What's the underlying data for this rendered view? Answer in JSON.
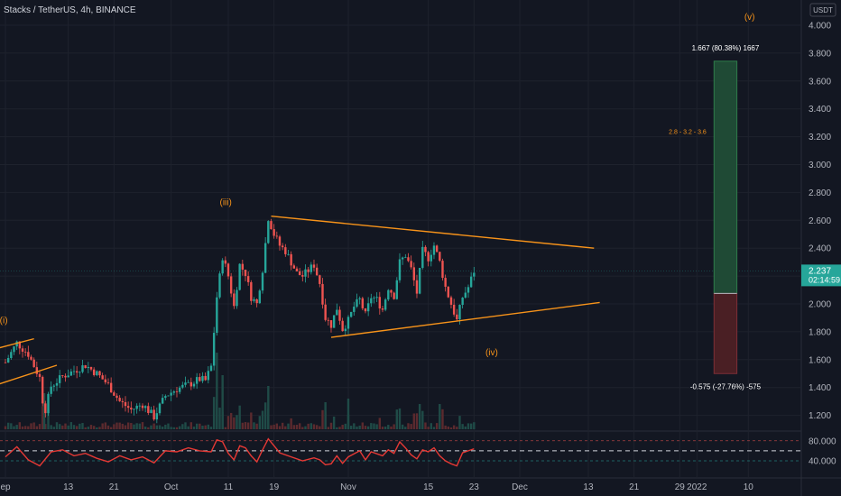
{
  "header": {
    "title": "Stacks / TetherUS, 4h, BINANCE",
    "currency_badge": "USDT"
  },
  "chart_data": {
    "type": "candlestick",
    "title": "Stacks / TetherUS, 4h, BINANCE",
    "ylim": [
      1.1,
      4.1
    ],
    "y_ticks": [
      1.2,
      1.4,
      1.6,
      1.8,
      2.0,
      2.2,
      2.4,
      2.6,
      2.8,
      3.0,
      3.2,
      3.4,
      3.6,
      3.8,
      4.0
    ],
    "y_tick_labels": [
      "1.200",
      "1.400",
      "1.600",
      "1.800",
      "2.000",
      "2.200",
      "2.400",
      "2.600",
      "2.800",
      "3.000",
      "3.200",
      "3.400",
      "3.600",
      "3.800",
      "4.000"
    ],
    "x_tick_labels": [
      {
        "label": "ep",
        "day": 0
      },
      {
        "label": "13",
        "day": 11
      },
      {
        "label": "21",
        "day": 19
      },
      {
        "label": "Oct",
        "day": 29
      },
      {
        "label": "11",
        "day": 39
      },
      {
        "label": "19",
        "day": 47
      },
      {
        "label": "Nov",
        "day": 60
      },
      {
        "label": "15",
        "day": 74
      },
      {
        "label": "23",
        "day": 82
      },
      {
        "label": "Dec",
        "day": 90
      },
      {
        "label": "13",
        "day": 102
      },
      {
        "label": "21",
        "day": 110
      },
      {
        "label": "29",
        "day": 118
      },
      {
        "label": "2022",
        "day": 121
      },
      {
        "label": "10",
        "day": 130
      }
    ],
    "x_range_days": [
      -1.5,
      132
    ],
    "price_path": [
      [
        0,
        1.58
      ],
      [
        2,
        1.72
      ],
      [
        4,
        1.64
      ],
      [
        6,
        1.47
      ],
      [
        6.8,
        1.21
      ],
      [
        8,
        1.41
      ],
      [
        10,
        1.48
      ],
      [
        12,
        1.52
      ],
      [
        14,
        1.56
      ],
      [
        16,
        1.5
      ],
      [
        18,
        1.42
      ],
      [
        20,
        1.3
      ],
      [
        22,
        1.24
      ],
      [
        24,
        1.28
      ],
      [
        26,
        1.19
      ],
      [
        28,
        1.34
      ],
      [
        30,
        1.39
      ],
      [
        32,
        1.42
      ],
      [
        34,
        1.46
      ],
      [
        35,
        1.45
      ],
      [
        36,
        1.55
      ],
      [
        37,
        2.05
      ],
      [
        38,
        2.34
      ],
      [
        39,
        2.2
      ],
      [
        40,
        1.98
      ],
      [
        41,
        2.28
      ],
      [
        42,
        2.22
      ],
      [
        43,
        2.05
      ],
      [
        44,
        2.0
      ],
      [
        45,
        2.25
      ],
      [
        46,
        2.62
      ],
      [
        47,
        2.5
      ],
      [
        48,
        2.42
      ],
      [
        49,
        2.38
      ],
      [
        50,
        2.3
      ],
      [
        51,
        2.22
      ],
      [
        52,
        2.2
      ],
      [
        54,
        2.28
      ],
      [
        55,
        2.15
      ],
      [
        56,
        1.9
      ],
      [
        57,
        1.85
      ],
      [
        58,
        1.97
      ],
      [
        59,
        1.82
      ],
      [
        60,
        1.88
      ],
      [
        61,
        1.98
      ],
      [
        62,
        2.03
      ],
      [
        63,
        1.92
      ],
      [
        64,
        2.05
      ],
      [
        65,
        2.03
      ],
      [
        66,
        1.96
      ],
      [
        67,
        2.12
      ],
      [
        68,
        2.06
      ],
      [
        69,
        2.3
      ],
      [
        70,
        2.35
      ],
      [
        71,
        2.25
      ],
      [
        72,
        2.08
      ],
      [
        73,
        2.38
      ],
      [
        74,
        2.33
      ],
      [
        75,
        2.42
      ],
      [
        76,
        2.3
      ],
      [
        77,
        2.12
      ],
      [
        78,
        2.0
      ],
      [
        79,
        1.88
      ],
      [
        80,
        2.05
      ],
      [
        81,
        2.12
      ],
      [
        82,
        2.237
      ]
    ],
    "last_price": {
      "label": "2.237",
      "value": 2.237,
      "countdown": "02:14:59"
    },
    "wave_labels": [
      {
        "label": "(i)",
        "day": -1,
        "price": 1.86
      },
      {
        "label": "(iii)",
        "day": 37.5,
        "price": 2.71
      },
      {
        "label": "(iv)",
        "day": 84,
        "price": 1.63
      },
      {
        "label": "(v)",
        "day": 129.3,
        "price": 4.04
      }
    ],
    "trendlines": [
      {
        "name": "early-upper",
        "from": [
          -1.5,
          1.68
        ],
        "to": [
          5,
          1.75
        ]
      },
      {
        "name": "early-lower",
        "from": [
          -1.5,
          1.42
        ],
        "to": [
          9,
          1.56
        ]
      },
      {
        "name": "triangle-upper",
        "from": [
          46.5,
          2.63
        ],
        "to": [
          103,
          2.4
        ]
      },
      {
        "name": "triangle-lower",
        "from": [
          57,
          1.76
        ],
        "to": [
          104,
          2.01
        ]
      }
    ],
    "projection": {
      "day_start": 124,
      "day_end": 128,
      "entry": 2.075,
      "target": 3.742,
      "stop": 1.5,
      "target_label": "1.667 (80.38%) 1667",
      "stop_label": "-0.575 (-27.76%) -575",
      "mid_note": "2.8 - 3.2 - 3.6",
      "mid_note_price": 3.22
    },
    "oscillator": {
      "levels": [
        80,
        40
      ],
      "level_labels": [
        "80.000",
        "40.000"
      ],
      "ylim": [
        20,
        95
      ],
      "path": [
        [
          0,
          48
        ],
        [
          2,
          68
        ],
        [
          4,
          42
        ],
        [
          6,
          30
        ],
        [
          8,
          58
        ],
        [
          10,
          62
        ],
        [
          12,
          50
        ],
        [
          14,
          55
        ],
        [
          16,
          45
        ],
        [
          18,
          38
        ],
        [
          20,
          50
        ],
        [
          22,
          42
        ],
        [
          24,
          48
        ],
        [
          26,
          36
        ],
        [
          28,
          60
        ],
        [
          30,
          58
        ],
        [
          32,
          66
        ],
        [
          34,
          60
        ],
        [
          36,
          58
        ],
        [
          37,
          82
        ],
        [
          38,
          78
        ],
        [
          39,
          55
        ],
        [
          40,
          42
        ],
        [
          41,
          70
        ],
        [
          42,
          66
        ],
        [
          43,
          50
        ],
        [
          44,
          38
        ],
        [
          45,
          62
        ],
        [
          46,
          84
        ],
        [
          47,
          70
        ],
        [
          48,
          56
        ],
        [
          50,
          48
        ],
        [
          52,
          40
        ],
        [
          54,
          46
        ],
        [
          55,
          42
        ],
        [
          56,
          32
        ],
        [
          57,
          34
        ],
        [
          58,
          50
        ],
        [
          59,
          35
        ],
        [
          60,
          48
        ],
        [
          62,
          60
        ],
        [
          63,
          42
        ],
        [
          64,
          58
        ],
        [
          66,
          50
        ],
        [
          67,
          62
        ],
        [
          68,
          55
        ],
        [
          69,
          78
        ],
        [
          70,
          66
        ],
        [
          71,
          52
        ],
        [
          72,
          44
        ],
        [
          73,
          62
        ],
        [
          74,
          58
        ],
        [
          75,
          66
        ],
        [
          76,
          50
        ],
        [
          77,
          40
        ],
        [
          78,
          34
        ],
        [
          79,
          30
        ],
        [
          80,
          56
        ],
        [
          81,
          60
        ],
        [
          82,
          64
        ]
      ]
    }
  }
}
